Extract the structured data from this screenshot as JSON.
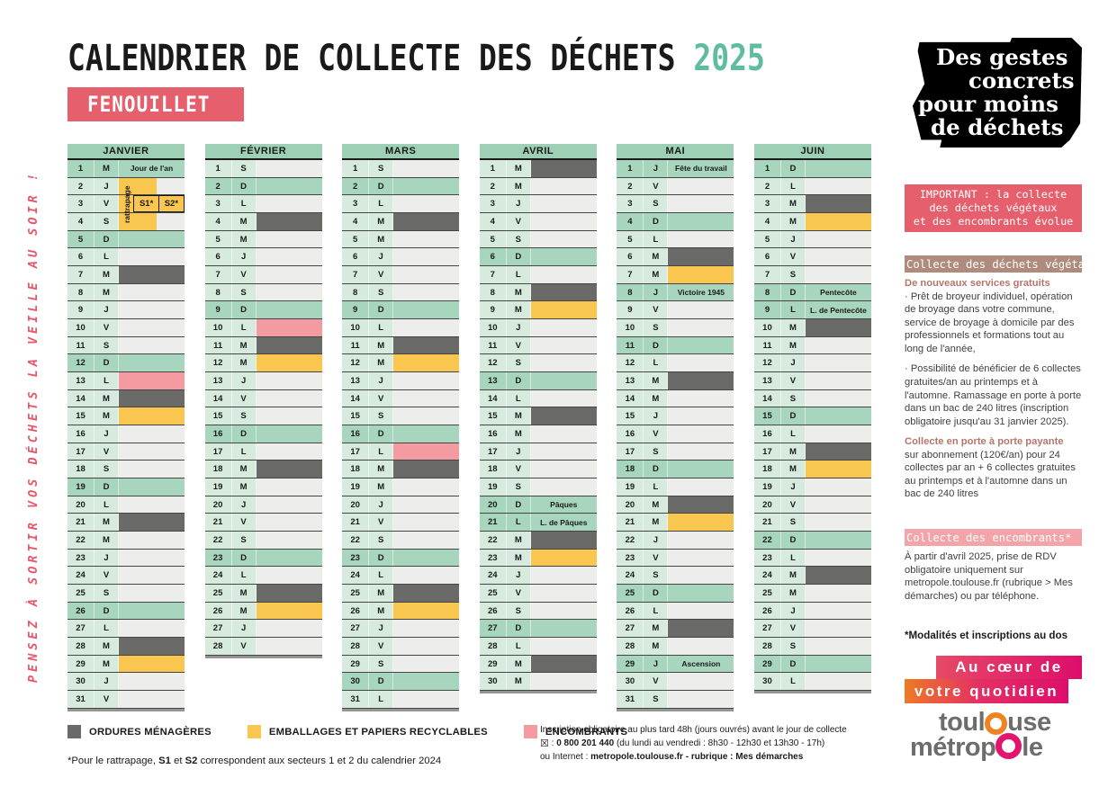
{
  "title": {
    "main": "CALENDRIER DE COLLECTE DES DÉCHETS ",
    "year": "2025"
  },
  "commune": "FENOUILLET",
  "vertical_note": "PENSEZ À SORTIR VOS DÉCHETS LA VEILLE AU SOIR !",
  "badge": {
    "l1": "Des gestes",
    "l2": "concrets",
    "l3": "pour moins",
    "l4": "de déchets"
  },
  "important_box": {
    "l1": "IMPORTANT : la collecte",
    "l2": "des déchets végétaux",
    "l3": "et des encombrants évolue"
  },
  "vegetaux": {
    "header": "Collecte des déchets végétaux*",
    "title1": "De nouveaux services gratuits",
    "p1": "· Prêt de broyeur individuel, opération de broyage dans votre commune, service de broyage à domicile par des professionnels et formations tout au long de l'année,",
    "p2": "· Possibilité de bénéficier de 6 collectes gratuites/an au printemps et à l'automne. Ramassage en porte à porte dans un bac de 240 litres (inscription obligatoire jusqu'au 31 janvier 2025).",
    "title2": "Collecte en porte à porte payante",
    "p3": "sur abonnement (120€/an) pour 24 collectes par an + 6 collectes gratuites au printemps et à l'automne dans un bac de 240 litres"
  },
  "encombrants": {
    "header": "Collecte des encombrants*",
    "p1": "À partir d'avril 2025, prise de RDV obligatoire uniquement sur metropole.toulouse.fr (rubrique > Mes démarches) ou par téléphone.",
    "note": "*Modalités et inscriptions au dos"
  },
  "banner": {
    "line1": "Au cœur de",
    "line2": "votre quotidien"
  },
  "logo": {
    "t1a": "toul",
    "t1b": "use",
    "t2a": "métrop",
    "t2b": "le"
  },
  "legend": [
    {
      "label": "ORDURES MÉNAGÈRES",
      "color": "#6a6a69"
    },
    {
      "label": "EMBALLAGES ET PAPIERS RECYCLABLES",
      "color": "#f9c64f"
    },
    {
      "label": "ENCOMBRANTS",
      "color": "#f49ba1"
    }
  ],
  "footnote": {
    "p1": "*Pour le rattrapage, ",
    "b1": "S1",
    "p2": " et ",
    "b2": "S2",
    "p3": " correspondent aux secteurs 1 et 2 du calendrier 2024"
  },
  "inscription": {
    "line1": "Inscription obligatoire au plus tard 48h (jours ouvrés) avant le jour de collecte",
    "phone_icon": "☒",
    "line2_pre": " : ",
    "line2_phone": "0 800 201 440",
    "line2_rest": " (du lundi au vendredi : 8h30 - 12h30 et 13h30 - 17h)",
    "line3_pre": "ou Internet : ",
    "line3_bold": "metropole.toulouse.fr - rubrique : Mes démarches"
  },
  "rattrapage": {
    "vertical": "rattrapage",
    "s1": "S1*",
    "s2": "S2*"
  },
  "colors": {
    "header_green": "#9ed0b5",
    "cell_green": "#d6ebde",
    "sunday_green": "#a7d5bd",
    "plain": "#ededeb",
    "om_gray": "#6a6a69",
    "rec_yellow": "#f9c64f",
    "enc_pink": "#f49ba1",
    "accent_red": "#e65f6d",
    "teal": "#5fbc9f",
    "veg_brown": "#ae8b7d",
    "enc_header_pink": "#f3a4a9",
    "magenta": "#de0d6c",
    "orange": "#ee7a23"
  },
  "months": [
    {
      "name": "JANVIER",
      "days": [
        [
          1,
          "M",
          "hol",
          "Jour de l'an"
        ],
        [
          2,
          "J",
          "rat-a"
        ],
        [
          3,
          "V",
          "rat-b"
        ],
        [
          4,
          "S",
          "rat-c"
        ],
        [
          5,
          "D",
          "sun"
        ],
        [
          6,
          "L",
          "none"
        ],
        [
          7,
          "M",
          "om"
        ],
        [
          8,
          "M",
          "none"
        ],
        [
          9,
          "J",
          "none"
        ],
        [
          10,
          "V",
          "none"
        ],
        [
          11,
          "S",
          "none"
        ],
        [
          12,
          "D",
          "sun"
        ],
        [
          13,
          "L",
          "enc"
        ],
        [
          14,
          "M",
          "om"
        ],
        [
          15,
          "M",
          "rec"
        ],
        [
          16,
          "J",
          "none"
        ],
        [
          17,
          "V",
          "none"
        ],
        [
          18,
          "S",
          "none"
        ],
        [
          19,
          "D",
          "sun"
        ],
        [
          20,
          "L",
          "none"
        ],
        [
          21,
          "M",
          "om"
        ],
        [
          22,
          "M",
          "none"
        ],
        [
          23,
          "J",
          "none"
        ],
        [
          24,
          "V",
          "none"
        ],
        [
          25,
          "S",
          "none"
        ],
        [
          26,
          "D",
          "sun"
        ],
        [
          27,
          "L",
          "none"
        ],
        [
          28,
          "M",
          "om"
        ],
        [
          29,
          "M",
          "rec"
        ],
        [
          30,
          "J",
          "none"
        ],
        [
          31,
          "V",
          "none"
        ]
      ]
    },
    {
      "name": "FÉVRIER",
      "days": [
        [
          1,
          "S",
          "none"
        ],
        [
          2,
          "D",
          "sun"
        ],
        [
          3,
          "L",
          "none"
        ],
        [
          4,
          "M",
          "om"
        ],
        [
          5,
          "M",
          "none"
        ],
        [
          6,
          "J",
          "none"
        ],
        [
          7,
          "V",
          "none"
        ],
        [
          8,
          "S",
          "none"
        ],
        [
          9,
          "D",
          "sun"
        ],
        [
          10,
          "L",
          "enc"
        ],
        [
          11,
          "M",
          "om"
        ],
        [
          12,
          "M",
          "rec"
        ],
        [
          13,
          "J",
          "none"
        ],
        [
          14,
          "V",
          "none"
        ],
        [
          15,
          "S",
          "none"
        ],
        [
          16,
          "D",
          "sun"
        ],
        [
          17,
          "L",
          "none"
        ],
        [
          18,
          "M",
          "om"
        ],
        [
          19,
          "M",
          "none"
        ],
        [
          20,
          "J",
          "none"
        ],
        [
          21,
          "V",
          "none"
        ],
        [
          22,
          "S",
          "none"
        ],
        [
          23,
          "D",
          "sun"
        ],
        [
          24,
          "L",
          "none"
        ],
        [
          25,
          "M",
          "om"
        ],
        [
          26,
          "M",
          "rec"
        ],
        [
          27,
          "J",
          "none"
        ],
        [
          28,
          "V",
          "none"
        ]
      ]
    },
    {
      "name": "MARS",
      "days": [
        [
          1,
          "S",
          "none"
        ],
        [
          2,
          "D",
          "sun"
        ],
        [
          3,
          "L",
          "none"
        ],
        [
          4,
          "M",
          "om"
        ],
        [
          5,
          "M",
          "none"
        ],
        [
          6,
          "J",
          "none"
        ],
        [
          7,
          "V",
          "none"
        ],
        [
          8,
          "S",
          "none"
        ],
        [
          9,
          "D",
          "sun"
        ],
        [
          10,
          "L",
          "none"
        ],
        [
          11,
          "M",
          "om"
        ],
        [
          12,
          "M",
          "rec"
        ],
        [
          13,
          "J",
          "none"
        ],
        [
          14,
          "V",
          "none"
        ],
        [
          15,
          "S",
          "none"
        ],
        [
          16,
          "D",
          "sun"
        ],
        [
          17,
          "L",
          "enc"
        ],
        [
          18,
          "M",
          "om"
        ],
        [
          19,
          "M",
          "none"
        ],
        [
          20,
          "J",
          "none"
        ],
        [
          21,
          "V",
          "none"
        ],
        [
          22,
          "S",
          "none"
        ],
        [
          23,
          "D",
          "sun"
        ],
        [
          24,
          "L",
          "none"
        ],
        [
          25,
          "M",
          "om"
        ],
        [
          26,
          "M",
          "rec"
        ],
        [
          27,
          "J",
          "none"
        ],
        [
          28,
          "V",
          "none"
        ],
        [
          29,
          "S",
          "none"
        ],
        [
          30,
          "D",
          "sun"
        ],
        [
          31,
          "L",
          "none"
        ]
      ]
    },
    {
      "name": "AVRIL",
      "days": [
        [
          1,
          "M",
          "om"
        ],
        [
          2,
          "M",
          "none"
        ],
        [
          3,
          "J",
          "none"
        ],
        [
          4,
          "V",
          "none"
        ],
        [
          5,
          "S",
          "none"
        ],
        [
          6,
          "D",
          "sun"
        ],
        [
          7,
          "L",
          "none"
        ],
        [
          8,
          "M",
          "om"
        ],
        [
          9,
          "M",
          "rec"
        ],
        [
          10,
          "J",
          "none"
        ],
        [
          11,
          "V",
          "none"
        ],
        [
          12,
          "S",
          "none"
        ],
        [
          13,
          "D",
          "sun"
        ],
        [
          14,
          "L",
          "none"
        ],
        [
          15,
          "M",
          "om"
        ],
        [
          16,
          "M",
          "none"
        ],
        [
          17,
          "J",
          "none"
        ],
        [
          18,
          "V",
          "none"
        ],
        [
          19,
          "S",
          "none"
        ],
        [
          20,
          "D",
          "hol",
          "Pâques"
        ],
        [
          21,
          "L",
          "hol",
          "L. de Pâques"
        ],
        [
          22,
          "M",
          "om"
        ],
        [
          23,
          "M",
          "rec"
        ],
        [
          24,
          "J",
          "none"
        ],
        [
          25,
          "V",
          "none"
        ],
        [
          26,
          "S",
          "none"
        ],
        [
          27,
          "D",
          "sun"
        ],
        [
          28,
          "L",
          "none"
        ],
        [
          29,
          "M",
          "om"
        ],
        [
          30,
          "M",
          "none"
        ]
      ]
    },
    {
      "name": "MAI",
      "days": [
        [
          1,
          "J",
          "hol",
          "Fête du travail"
        ],
        [
          2,
          "V",
          "none"
        ],
        [
          3,
          "S",
          "none"
        ],
        [
          4,
          "D",
          "sun"
        ],
        [
          5,
          "L",
          "none"
        ],
        [
          6,
          "M",
          "om"
        ],
        [
          7,
          "M",
          "rec"
        ],
        [
          8,
          "J",
          "hol",
          "Victoire 1945"
        ],
        [
          9,
          "V",
          "none"
        ],
        [
          10,
          "S",
          "none"
        ],
        [
          11,
          "D",
          "sun"
        ],
        [
          12,
          "L",
          "none"
        ],
        [
          13,
          "M",
          "om"
        ],
        [
          14,
          "M",
          "none"
        ],
        [
          15,
          "J",
          "none"
        ],
        [
          16,
          "V",
          "none"
        ],
        [
          17,
          "S",
          "none"
        ],
        [
          18,
          "D",
          "sun"
        ],
        [
          19,
          "L",
          "none"
        ],
        [
          20,
          "M",
          "om"
        ],
        [
          21,
          "M",
          "rec"
        ],
        [
          22,
          "J",
          "none"
        ],
        [
          23,
          "V",
          "none"
        ],
        [
          24,
          "S",
          "none"
        ],
        [
          25,
          "D",
          "sun"
        ],
        [
          26,
          "L",
          "none"
        ],
        [
          27,
          "M",
          "om"
        ],
        [
          28,
          "M",
          "none"
        ],
        [
          29,
          "J",
          "hol",
          "Ascension"
        ],
        [
          30,
          "V",
          "none"
        ],
        [
          31,
          "S",
          "none"
        ]
      ]
    },
    {
      "name": "JUIN",
      "days": [
        [
          1,
          "D",
          "sun"
        ],
        [
          2,
          "L",
          "none"
        ],
        [
          3,
          "M",
          "om"
        ],
        [
          4,
          "M",
          "rec"
        ],
        [
          5,
          "J",
          "none"
        ],
        [
          6,
          "V",
          "none"
        ],
        [
          7,
          "S",
          "none"
        ],
        [
          8,
          "D",
          "hol",
          "Pentecôte"
        ],
        [
          9,
          "L",
          "hol",
          "L. de Pentecôte"
        ],
        [
          10,
          "M",
          "om"
        ],
        [
          11,
          "M",
          "none"
        ],
        [
          12,
          "J",
          "none"
        ],
        [
          13,
          "V",
          "none"
        ],
        [
          14,
          "S",
          "none"
        ],
        [
          15,
          "D",
          "sun"
        ],
        [
          16,
          "L",
          "none"
        ],
        [
          17,
          "M",
          "om"
        ],
        [
          18,
          "M",
          "rec"
        ],
        [
          19,
          "J",
          "none"
        ],
        [
          20,
          "V",
          "none"
        ],
        [
          21,
          "S",
          "none"
        ],
        [
          22,
          "D",
          "sun"
        ],
        [
          23,
          "L",
          "none"
        ],
        [
          24,
          "M",
          "om"
        ],
        [
          25,
          "M",
          "none"
        ],
        [
          26,
          "J",
          "none"
        ],
        [
          27,
          "V",
          "none"
        ],
        [
          28,
          "S",
          "none"
        ],
        [
          29,
          "D",
          "sun"
        ],
        [
          30,
          "L",
          "none"
        ]
      ]
    }
  ]
}
